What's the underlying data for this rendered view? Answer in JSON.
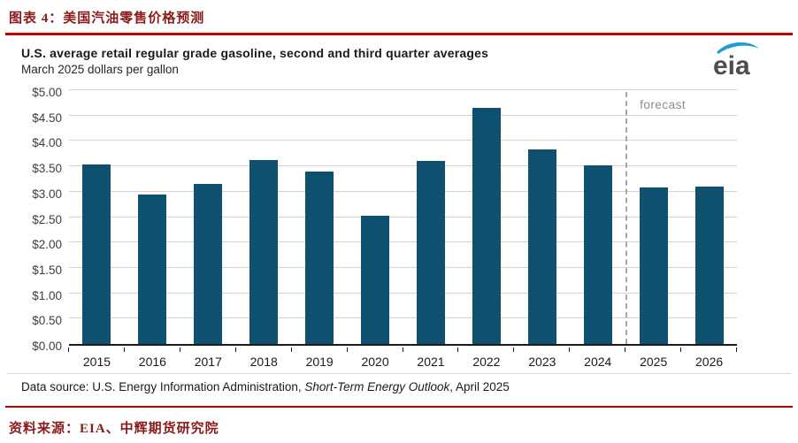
{
  "doc": {
    "title": "图表 4：美国汽油零售价格预测",
    "source": "资料来源：EIA、中辉期货研究院"
  },
  "chart": {
    "title": "U.S. average retail regular grade gasoline, second and third quarter averages",
    "subtitle": "March 2025 dollars per gallon",
    "forecast_label": "forecast",
    "source_prefix": "Data source: U.S. Energy Information Administration, ",
    "source_italic": "Short-Term Energy Outlook",
    "source_suffix": ", April 2025",
    "logo_text": "eia"
  },
  "chart_data": {
    "type": "bar",
    "title": "U.S. average retail regular grade gasoline, second and third quarter averages",
    "subtitle": "March 2025 dollars per gallon",
    "categories": [
      "2015",
      "2016",
      "2017",
      "2018",
      "2019",
      "2020",
      "2021",
      "2022",
      "2023",
      "2024",
      "2025",
      "2026"
    ],
    "values": [
      3.54,
      2.95,
      3.15,
      3.62,
      3.4,
      2.53,
      3.61,
      4.65,
      3.84,
      3.52,
      3.08,
      3.1
    ],
    "xlabel": "",
    "ylabel": "March 2025 dollars per gallon",
    "ylim": [
      0,
      5
    ],
    "y_ticks": [
      0,
      0.5,
      1.0,
      1.5,
      2.0,
      2.5,
      3.0,
      3.5,
      4.0,
      4.5,
      5.0
    ],
    "y_tick_labels": [
      "$0.00",
      "$0.50",
      "$1.00",
      "$1.50",
      "$2.00",
      "$2.50",
      "$3.00",
      "$3.50",
      "$4.00",
      "$4.50",
      "$5.00"
    ],
    "grid": true,
    "legend": "none",
    "forecast_start_category": "2025",
    "forecast_annotation": "forecast",
    "bar_color": "#0f506e",
    "grid_color": "#d2d2d2",
    "axis_color": "#1a1a1a",
    "forecast_line_color": "#a6a6a6"
  },
  "colors": {
    "accent_red": "#c00000",
    "heading_maroon": "#8b1a1a",
    "logo_blue": "#1e9cd7",
    "logo_gray": "#4c4d4f"
  }
}
